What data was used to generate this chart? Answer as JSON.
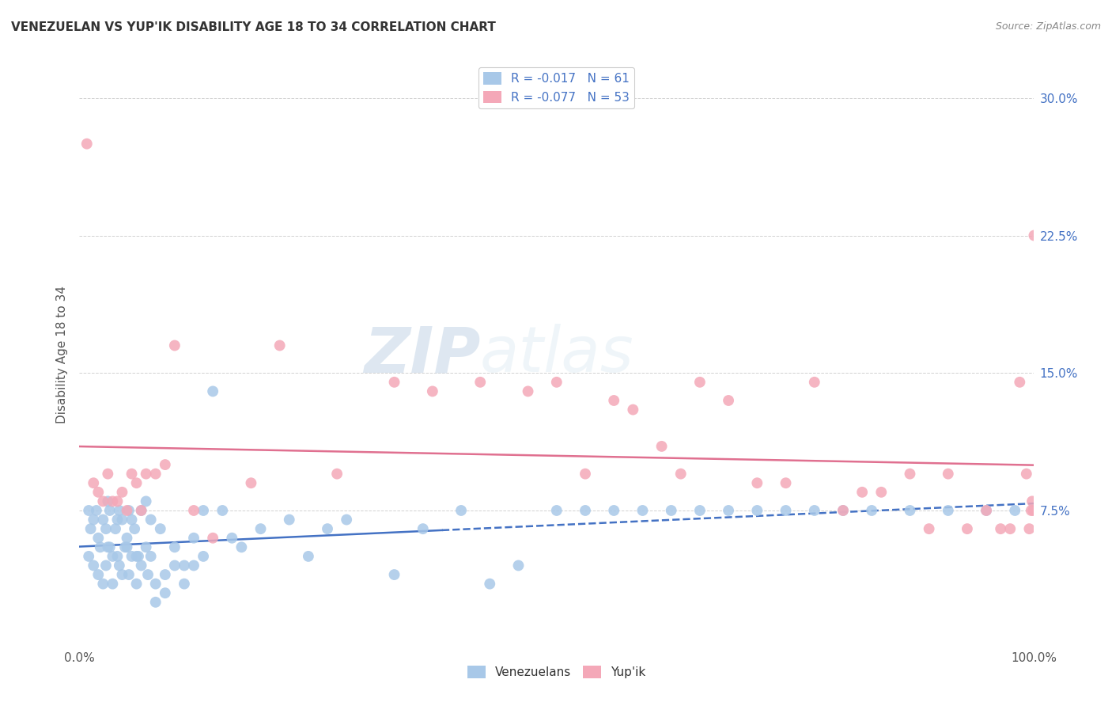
{
  "title": "VENEZUELAN VS YUP'IK DISABILITY AGE 18 TO 34 CORRELATION CHART",
  "source": "Source: ZipAtlas.com",
  "ylabel": "Disability Age 18 to 34",
  "legend_labels": [
    "Venezuelans",
    "Yup'ik"
  ],
  "venezuelan_R": -0.017,
  "venezuelan_N": 61,
  "yupik_R": -0.077,
  "yupik_N": 53,
  "xlim": [
    0.0,
    100.0
  ],
  "ylim": [
    0.0,
    32.0
  ],
  "yticks": [
    0.0,
    7.5,
    15.0,
    22.5,
    30.0
  ],
  "ytick_labels": [
    "",
    "7.5%",
    "15.0%",
    "22.5%",
    "30.0%"
  ],
  "xticks": [
    0.0,
    100.0
  ],
  "xtick_labels": [
    "0.0%",
    "100.0%"
  ],
  "venezuelan_color": "#a8c8e8",
  "yupik_color": "#f4a8b8",
  "venezuelan_line_color": "#4472c4",
  "yupik_line_color": "#e07090",
  "background_color": "#ffffff",
  "watermark_zip": "ZIP",
  "watermark_atlas": "atlas",
  "venezuelan_x": [
    1.0,
    1.2,
    1.5,
    1.8,
    2.0,
    2.2,
    2.5,
    2.8,
    3.0,
    3.2,
    3.5,
    3.8,
    4.0,
    4.2,
    4.5,
    4.8,
    5.0,
    5.2,
    5.5,
    5.8,
    6.0,
    6.5,
    7.0,
    7.5,
    8.0,
    8.5,
    9.0,
    10.0,
    11.0,
    12.0,
    13.0,
    14.0,
    15.0,
    16.0,
    17.0,
    19.0,
    22.0,
    24.0,
    26.0,
    28.0,
    33.0,
    36.0,
    40.0,
    43.0,
    46.0,
    50.0,
    53.0,
    56.0,
    59.0,
    62.0,
    65.0,
    68.0,
    71.0,
    74.0,
    77.0,
    80.0,
    83.0,
    87.0,
    91.0,
    95.0,
    98.0
  ],
  "venezuelan_y": [
    7.5,
    6.5,
    7.0,
    7.5,
    6.0,
    5.5,
    7.0,
    6.5,
    8.0,
    7.5,
    5.0,
    6.5,
    7.0,
    7.5,
    7.0,
    5.5,
    6.0,
    7.5,
    7.0,
    6.5,
    5.0,
    7.5,
    8.0,
    7.0,
    3.5,
    6.5,
    4.0,
    5.5,
    4.5,
    6.0,
    7.5,
    14.0,
    7.5,
    6.0,
    5.5,
    6.5,
    7.0,
    5.0,
    6.5,
    7.0,
    4.0,
    6.5,
    7.5,
    3.5,
    4.5,
    7.5,
    7.5,
    7.5,
    7.5,
    7.5,
    7.5,
    7.5,
    7.5,
    7.5,
    7.5,
    7.5,
    7.5,
    7.5,
    7.5,
    7.5,
    7.5
  ],
  "yupik_x": [
    0.8,
    1.5,
    2.0,
    2.5,
    3.0,
    3.5,
    4.0,
    4.5,
    5.0,
    5.5,
    6.0,
    6.5,
    7.0,
    8.0,
    9.0,
    10.0,
    12.0,
    14.0,
    18.0,
    21.0,
    27.0,
    33.0,
    37.0,
    42.0,
    47.0,
    50.0,
    53.0,
    56.0,
    58.0,
    61.0,
    63.0,
    65.0,
    68.0,
    71.0,
    74.0,
    77.0,
    80.0,
    82.0,
    84.0,
    87.0,
    89.0,
    91.0,
    93.0,
    95.0,
    96.5,
    97.5,
    98.5,
    99.2,
    99.5,
    99.7,
    99.8,
    99.9,
    100.0
  ],
  "yupik_y": [
    27.5,
    9.0,
    8.5,
    8.0,
    9.5,
    8.0,
    8.0,
    8.5,
    7.5,
    9.5,
    9.0,
    7.5,
    9.5,
    9.5,
    10.0,
    16.5,
    7.5,
    6.0,
    9.0,
    16.5,
    9.5,
    14.5,
    14.0,
    14.5,
    14.0,
    14.5,
    9.5,
    13.5,
    13.0,
    11.0,
    9.5,
    14.5,
    13.5,
    9.0,
    9.0,
    14.5,
    7.5,
    8.5,
    8.5,
    9.5,
    6.5,
    9.5,
    6.5,
    7.5,
    6.5,
    6.5,
    14.5,
    9.5,
    6.5,
    7.5,
    8.0,
    7.5,
    22.5
  ],
  "ven_more_x": [
    1.0,
    1.5,
    2.0,
    2.5,
    3.0,
    3.5,
    4.0,
    4.5,
    5.0,
    5.5,
    6.0,
    6.5,
    7.0,
    7.5,
    8.0,
    9.0,
    10.0,
    11.0,
    12.0,
    13.0,
    2.8,
    3.2,
    4.2,
    5.2,
    6.2,
    7.2
  ],
  "ven_more_y": [
    5.0,
    4.5,
    4.0,
    3.5,
    5.5,
    3.5,
    5.0,
    4.0,
    5.5,
    5.0,
    3.5,
    4.5,
    5.5,
    5.0,
    2.5,
    3.0,
    4.5,
    3.5,
    4.5,
    5.0,
    4.5,
    5.5,
    4.5,
    4.0,
    5.0,
    4.0
  ]
}
